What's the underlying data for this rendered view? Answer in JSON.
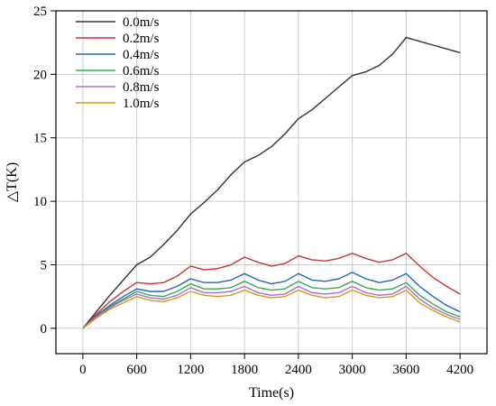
{
  "chart_data": {
    "type": "line",
    "title": "",
    "xlabel": "Time(s)",
    "ylabel": "△T(K)",
    "xlim": [
      -300,
      4500
    ],
    "ylim": [
      -2,
      25
    ],
    "xticks": [
      0,
      600,
      1200,
      1800,
      2400,
      3000,
      3600,
      4200
    ],
    "xtick_labels": [
      "0",
      "600",
      "1200",
      "1800",
      "2400",
      "3000",
      "3600",
      "4200"
    ],
    "yticks": [
      0,
      5,
      10,
      15,
      20,
      25
    ],
    "ytick_labels": [
      "0",
      "5",
      "10",
      "15",
      "20",
      "25"
    ],
    "grid": true,
    "legend_position": "top-left",
    "series": [
      {
        "name": "0.0m/s",
        "color": "#333333",
        "x": [
          0,
          150,
          300,
          450,
          600,
          750,
          900,
          1050,
          1200,
          1350,
          1500,
          1650,
          1800,
          1950,
          2100,
          2250,
          2400,
          2550,
          2700,
          2850,
          3000,
          3150,
          3300,
          3450,
          3600,
          3750,
          3900,
          4050,
          4200
        ],
        "y": [
          0,
          1.3,
          2.6,
          3.8,
          5.0,
          5.6,
          6.6,
          7.7,
          9.0,
          9.9,
          10.9,
          12.1,
          13.1,
          13.6,
          14.3,
          15.3,
          16.5,
          17.2,
          18.1,
          19.0,
          19.9,
          20.2,
          20.7,
          21.6,
          22.9,
          22.6,
          22.3,
          22.0,
          21.7
        ]
      },
      {
        "name": "0.2m/s",
        "color": "#cc3333",
        "x": [
          0,
          150,
          300,
          450,
          600,
          750,
          900,
          1050,
          1200,
          1350,
          1500,
          1650,
          1800,
          1950,
          2100,
          2250,
          2400,
          2550,
          2700,
          2850,
          3000,
          3150,
          3300,
          3450,
          3600,
          3750,
          3900,
          4050,
          4200
        ],
        "y": [
          0,
          1.1,
          2.1,
          2.9,
          3.6,
          3.5,
          3.6,
          4.1,
          4.9,
          4.6,
          4.7,
          5.0,
          5.6,
          5.2,
          4.9,
          5.1,
          5.7,
          5.4,
          5.3,
          5.5,
          5.9,
          5.5,
          5.2,
          5.4,
          5.9,
          4.9,
          4.0,
          3.3,
          2.7
        ]
      },
      {
        "name": "0.4m/s",
        "color": "#2266bb",
        "x": [
          0,
          150,
          300,
          450,
          600,
          750,
          900,
          1050,
          1200,
          1350,
          1500,
          1650,
          1800,
          1950,
          2100,
          2250,
          2400,
          2550,
          2700,
          2850,
          3000,
          3150,
          3300,
          3450,
          3600,
          3750,
          3900,
          4050,
          4200
        ],
        "y": [
          0,
          1.0,
          1.8,
          2.5,
          3.1,
          2.9,
          2.9,
          3.3,
          3.9,
          3.6,
          3.6,
          3.8,
          4.3,
          3.8,
          3.5,
          3.7,
          4.3,
          3.8,
          3.7,
          3.9,
          4.4,
          3.9,
          3.6,
          3.8,
          4.3,
          3.3,
          2.5,
          1.8,
          1.3
        ]
      },
      {
        "name": "0.6m/s",
        "color": "#33aa55",
        "x": [
          0,
          150,
          300,
          450,
          600,
          750,
          900,
          1050,
          1200,
          1350,
          1500,
          1650,
          1800,
          1950,
          2100,
          2250,
          2400,
          2550,
          2700,
          2850,
          3000,
          3150,
          3300,
          3450,
          3600,
          3750,
          3900,
          4050,
          4200
        ],
        "y": [
          0,
          0.9,
          1.7,
          2.3,
          2.9,
          2.6,
          2.5,
          2.9,
          3.5,
          3.1,
          3.1,
          3.2,
          3.7,
          3.2,
          3.0,
          3.1,
          3.7,
          3.2,
          3.1,
          3.2,
          3.7,
          3.2,
          3.0,
          3.1,
          3.6,
          2.6,
          1.9,
          1.3,
          0.9
        ]
      },
      {
        "name": "0.8m/s",
        "color": "#b36bc7",
        "x": [
          0,
          150,
          300,
          450,
          600,
          750,
          900,
          1050,
          1200,
          1350,
          1500,
          1650,
          1800,
          1950,
          2100,
          2250,
          2400,
          2550,
          2700,
          2850,
          3000,
          3150,
          3300,
          3450,
          3600,
          3750,
          3900,
          4050,
          4200
        ],
        "y": [
          0,
          0.9,
          1.6,
          2.2,
          2.7,
          2.4,
          2.3,
          2.6,
          3.2,
          2.8,
          2.8,
          2.9,
          3.3,
          2.8,
          2.6,
          2.7,
          3.3,
          2.8,
          2.7,
          2.8,
          3.3,
          2.8,
          2.6,
          2.7,
          3.3,
          2.3,
          1.6,
          1.1,
          0.7
        ]
      },
      {
        "name": "1.0m/s",
        "color": "#d49a1a",
        "x": [
          0,
          150,
          300,
          450,
          600,
          750,
          900,
          1050,
          1200,
          1350,
          1500,
          1650,
          1800,
          1950,
          2100,
          2250,
          2400,
          2550,
          2700,
          2850,
          3000,
          3150,
          3300,
          3450,
          3600,
          3750,
          3900,
          4050,
          4200
        ],
        "y": [
          0,
          0.8,
          1.5,
          2.0,
          2.5,
          2.2,
          2.1,
          2.4,
          2.9,
          2.6,
          2.5,
          2.6,
          3.0,
          2.6,
          2.4,
          2.5,
          3.0,
          2.6,
          2.4,
          2.5,
          3.0,
          2.6,
          2.4,
          2.5,
          3.0,
          2.0,
          1.4,
          0.9,
          0.5
        ]
      }
    ]
  }
}
